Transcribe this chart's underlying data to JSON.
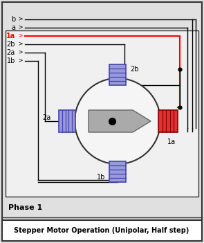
{
  "title": "Stepper Motor Operation (Unipolar, Half step)",
  "phase_label": "Phase 1",
  "bg_color": "#e0e0e0",
  "inner_bg": "#f0f0f0",
  "border_color": "#333333",
  "wire_labels": [
    "b",
    "a",
    "1a",
    "2b",
    "2a",
    "1b"
  ],
  "active_wire": "1a",
  "active_wire_color": "#ff0000",
  "inactive_wire_color": "#000000",
  "coil_blue_fill": "#9999dd",
  "coil_blue_edge": "#4444aa",
  "coil_red_fill": "#dd3333",
  "coil_red_edge": "#880000",
  "motor_fill": "#f5f5f5",
  "motor_edge": "#333333",
  "rotor_fill": "#aaaaaa",
  "rotor_edge": "#666666",
  "dot_color": "#000000",
  "footer_bg": "#ffffff",
  "footer_text_color": "#000000"
}
